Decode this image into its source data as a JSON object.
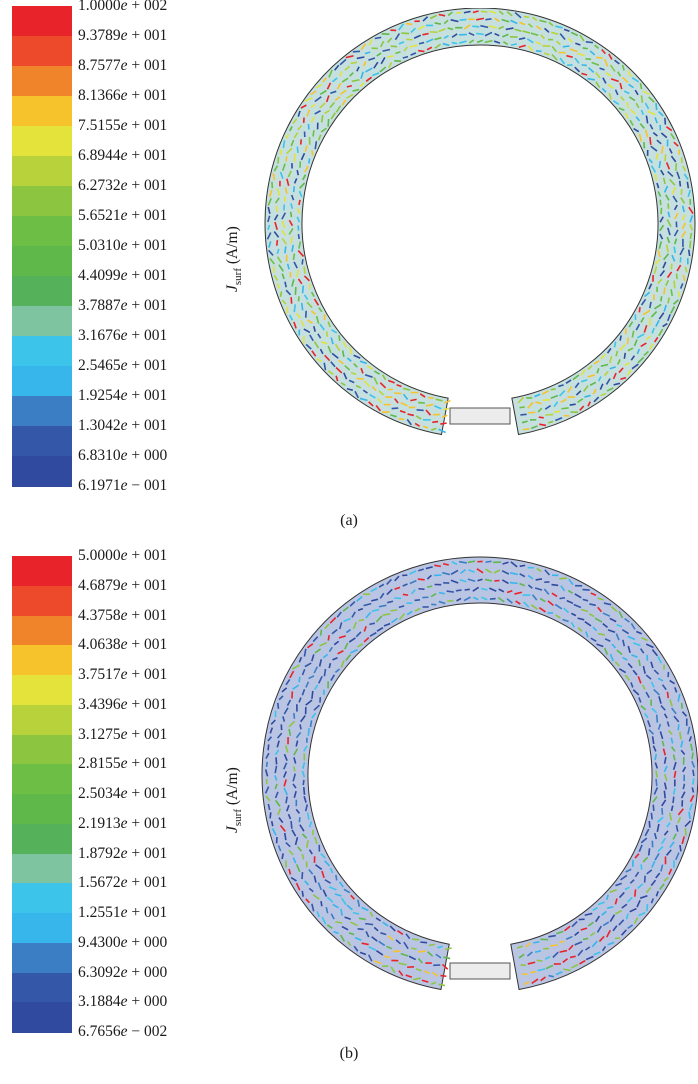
{
  "panels": [
    {
      "id": "a",
      "caption": "(a)",
      "quantity": "J",
      "quantity_sub": "surf",
      "unit": "(A/m)",
      "colorbar_labels": [
        "1.0000e + 002",
        "9.3789e + 001",
        "8.7577e + 001",
        "8.1366e + 001",
        "7.5155e + 001",
        "6.8944e + 001",
        "6.2732e + 001",
        "5.6521e + 001",
        "5.0310e + 001",
        "4.4099e + 001",
        "3.7887e + 001",
        "3.1676e + 001",
        "2.5465e + 001",
        "1.9254e + 001",
        "1.3042e + 001",
        "6.8310e + 000",
        "6.1971e − 001"
      ],
      "dominant": "mixed"
    },
    {
      "id": "b",
      "caption": "(b)",
      "quantity": "J",
      "quantity_sub": "surf",
      "unit": "(A/m)",
      "colorbar_labels": [
        "5.0000e + 001",
        "4.6879e + 001",
        "4.3758e + 001",
        "4.0638e + 001",
        "3.7517e + 001",
        "3.4396e + 001",
        "3.1275e + 001",
        "2.8155e + 001",
        "2.5034e + 001",
        "2.1913e + 001",
        "1.8792e + 001",
        "1.5672e + 001",
        "1.2551e + 001",
        "9.4300e + 000",
        "6.3092e + 000",
        "3.1884e + 000",
        "6.7656e − 002"
      ],
      "dominant": "blue"
    }
  ],
  "colorbar_colors": [
    "#e8242a",
    "#ec4a2a",
    "#f0842a",
    "#f7c32c",
    "#e3e33c",
    "#b8d23c",
    "#8cc641",
    "#6cbf44",
    "#5fb84a",
    "#55b25a",
    "#7fc4a0",
    "#3cc4ea",
    "#36b6ea",
    "#3c7ec4",
    "#3457a8",
    "#2f4a9e"
  ]
}
